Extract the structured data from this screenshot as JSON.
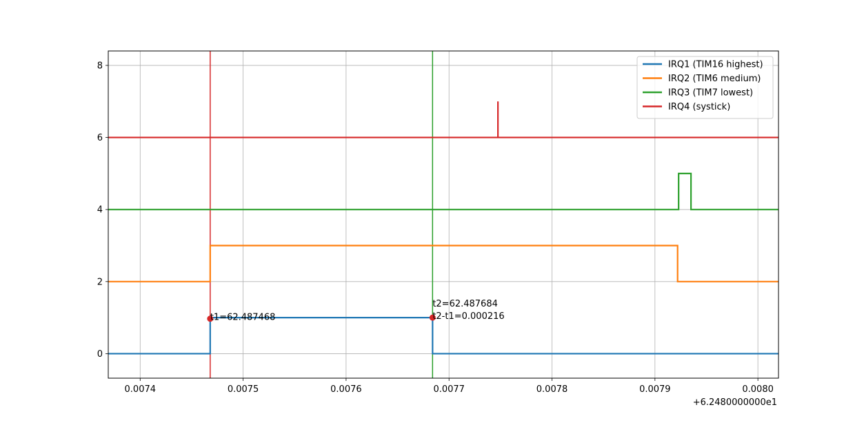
{
  "chart_data": {
    "type": "line",
    "xlim": [
      0.007369,
      0.00802
    ],
    "ylim": [
      -0.68,
      8.4
    ],
    "x_offset_label": "+6.2480000000e1",
    "x_ticks": [
      0.0074,
      0.0075,
      0.0076,
      0.0077,
      0.0078,
      0.0079,
      0.008
    ],
    "x_tick_labels": [
      "0.0074",
      "0.0075",
      "0.0076",
      "0.0077",
      "0.0078",
      "0.0079",
      "0.0080"
    ],
    "y_ticks": [
      0,
      2,
      4,
      6,
      8
    ],
    "y_tick_labels": [
      "0",
      "2",
      "4",
      "6",
      "8"
    ],
    "grid": true,
    "legend_position": "top-right",
    "series": [
      {
        "name": "IRQ1 (TIM16 highest)",
        "color": "#1f77b4",
        "step": true,
        "points": [
          [
            0.007369,
            0
          ],
          [
            0.007468,
            0
          ],
          [
            0.007468,
            1
          ],
          [
            0.007684,
            1
          ],
          [
            0.007684,
            0
          ],
          [
            0.00802,
            0
          ]
        ]
      },
      {
        "name": "IRQ2 (TIM6 medium)",
        "color": "#ff7f0e",
        "step": true,
        "points": [
          [
            0.007369,
            2
          ],
          [
            0.007468,
            2
          ],
          [
            0.007468,
            3
          ],
          [
            0.007922,
            3
          ],
          [
            0.007922,
            2
          ],
          [
            0.00802,
            2
          ]
        ]
      },
      {
        "name": "IRQ3 (TIM7 lowest)",
        "color": "#2ca02c",
        "step": true,
        "points": [
          [
            0.007369,
            4
          ],
          [
            0.007923,
            4
          ],
          [
            0.007923,
            5
          ],
          [
            0.007935,
            5
          ],
          [
            0.007935,
            4
          ],
          [
            0.00802,
            4
          ]
        ]
      },
      {
        "name": "IRQ4 (systick)",
        "color": "#d62728",
        "step": true,
        "points": [
          [
            0.007369,
            6
          ],
          [
            0.0077475,
            6
          ],
          [
            0.0077475,
            7
          ],
          [
            0.0077475,
            6
          ],
          [
            0.00802,
            6
          ]
        ]
      }
    ],
    "vlines": [
      {
        "x": 0.007468,
        "color": "#d62728"
      },
      {
        "x": 0.007684,
        "color": "#2ca02c"
      }
    ],
    "markers": [
      {
        "x": 0.007468,
        "y": 0.97,
        "color": "#d62728"
      },
      {
        "x": 0.007684,
        "y": 1.0,
        "color": "#d62728"
      }
    ],
    "annotations": [
      {
        "x": 0.007468,
        "y": 0.97,
        "lines": [
          "t1=62.487468"
        ]
      },
      {
        "x": 0.007684,
        "y": 1.0,
        "lines": [
          "t2=62.487684",
          "t2-t1=0.000216"
        ]
      }
    ]
  }
}
